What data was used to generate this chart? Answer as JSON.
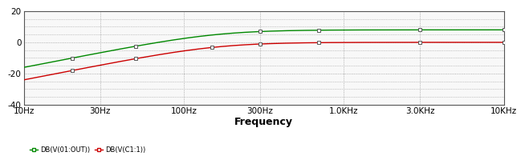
{
  "bg_color": "#ffffff",
  "plot_bg_color": "#f8f8f8",
  "grid_color": "#999999",
  "xlabel": "Frequency",
  "xmin": 10,
  "xmax": 10000,
  "ymin": -40,
  "ymax": 20,
  "yticks": [
    -40,
    -20,
    0,
    20
  ],
  "xtick_positions": [
    10,
    30,
    100,
    300,
    1000,
    3000,
    10000
  ],
  "xtick_labels": [
    "10Hz",
    "30Hz",
    "100Hz",
    "300Hz",
    "1.0KHz",
    "3.0KHz",
    "10KHz"
  ],
  "line1_color": "#008800",
  "line2_color": "#cc0000",
  "line1_label": "DB(V(01:OUT))",
  "line2_label": "DB(V(C1:1))",
  "line1_fc": 160,
  "line1_gain_db": 8.0,
  "line2_fc": 160,
  "line2_gain_db": 0.0,
  "marker_x_green": [
    20,
    50,
    300,
    700,
    3000,
    10000
  ],
  "marker_x_red": [
    20,
    50,
    150,
    300,
    700,
    3000,
    10000
  ]
}
